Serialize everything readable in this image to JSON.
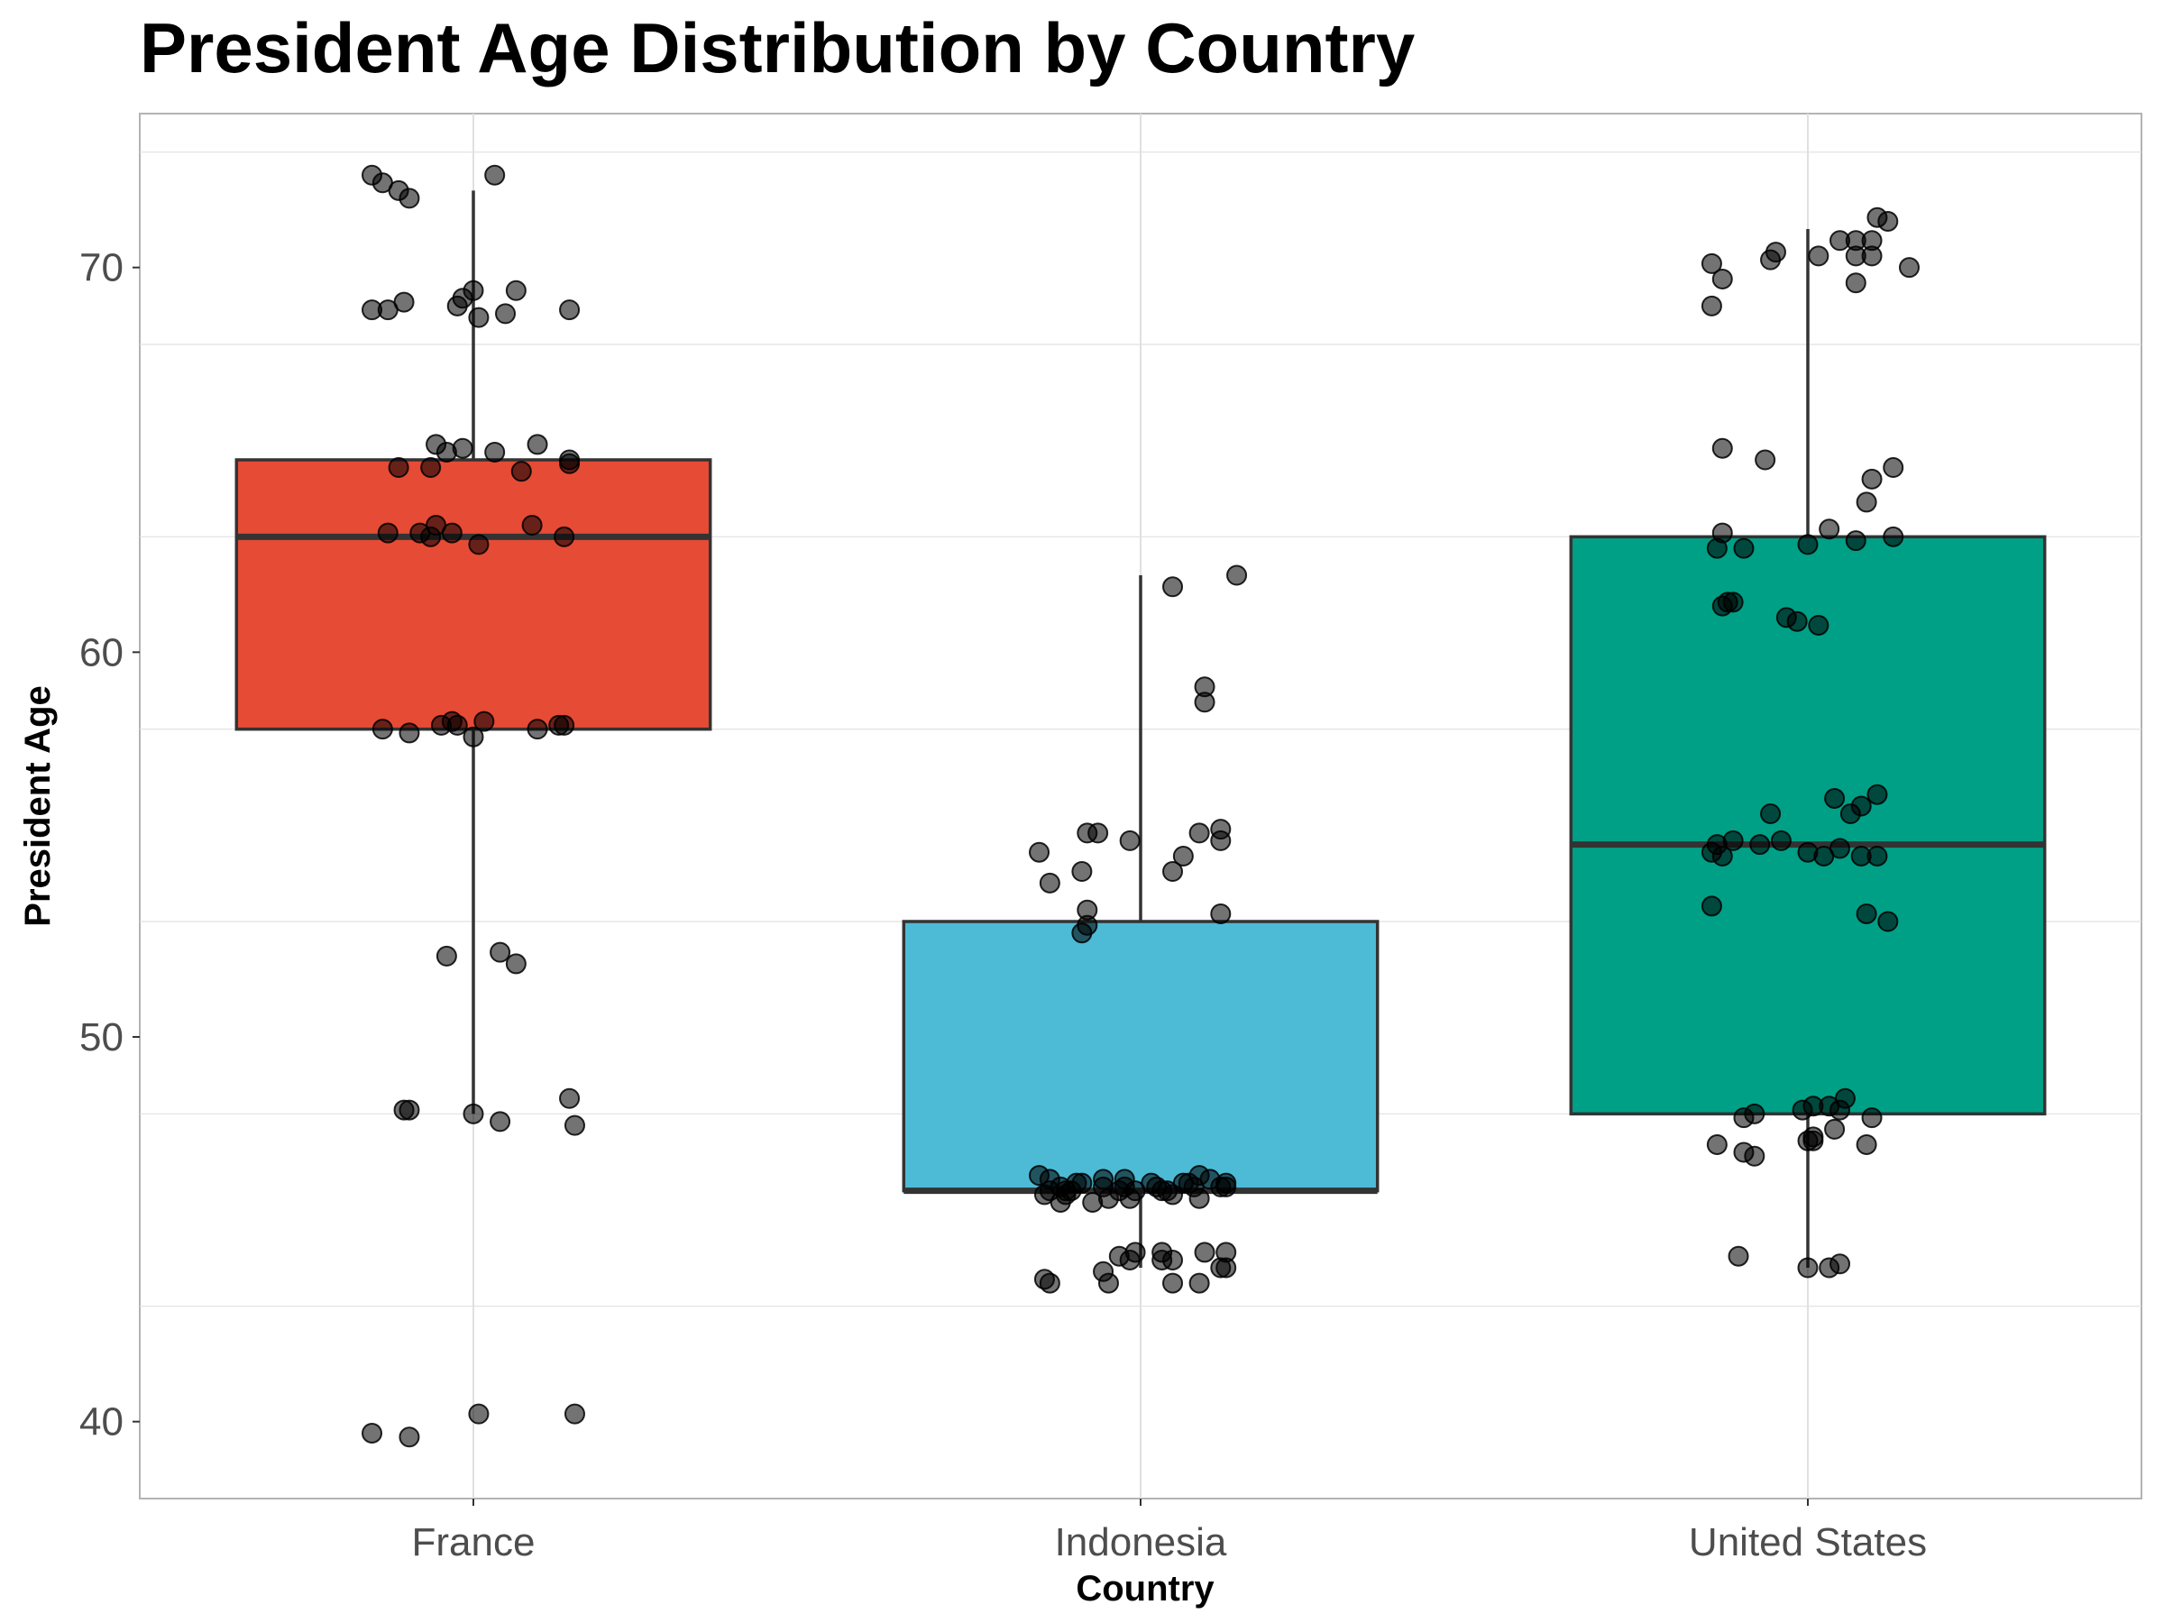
{
  "chart_data": {
    "type": "box",
    "title": "President Age Distribution by Country",
    "xlabel": "Country",
    "ylabel": "President Age",
    "ylim": [
      38,
      74
    ],
    "yticks": [
      40,
      50,
      60,
      70
    ],
    "grid": true,
    "categories": [
      "France",
      "Indonesia",
      "United States"
    ],
    "colors": [
      "#e64b35",
      "#4dbbd5",
      "#00a087"
    ],
    "boxes": [
      {
        "category": "France",
        "q1": 58,
        "median": 63,
        "q3": 65,
        "whisker_low": 48,
        "whisker_high": 72
      },
      {
        "category": "Indonesia",
        "q1": 46,
        "median": 46,
        "q3": 53,
        "whisker_low": 44,
        "whisker_high": 62
      },
      {
        "category": "United States",
        "q1": 48,
        "median": 55,
        "q3": 63,
        "whisker_low": 44,
        "whisker_high": 71
      }
    ],
    "points": [
      {
        "category": "France",
        "x": [
          -0.19,
          -0.17,
          -0.14,
          -0.12,
          0.04,
          -0.19,
          -0.16,
          -0.13,
          -0.02,
          0.0,
          0.08,
          0.18,
          -0.03,
          0.01,
          0.06,
          -0.07,
          -0.05,
          -0.02,
          0.04,
          0.12,
          0.18,
          -0.14,
          -0.08,
          0.09,
          0.18,
          -0.16,
          -0.08,
          -0.07,
          -0.1,
          -0.04,
          0.01,
          0.11,
          0.17,
          -0.06,
          0.02,
          0.16,
          -0.17,
          -0.12,
          -0.04,
          -0.03,
          0.0,
          0.12,
          0.17,
          -0.05,
          0.05,
          0.08,
          -0.12,
          -0.13,
          0.0,
          0.05,
          0.18,
          0.19,
          -0.19,
          -0.12,
          0.01,
          0.19
        ],
        "y": [
          72.4,
          72.2,
          72.0,
          71.8,
          72.4,
          68.9,
          68.9,
          69.1,
          69.2,
          69.4,
          69.4,
          68.9,
          69.0,
          68.7,
          68.8,
          65.4,
          65.2,
          65.3,
          65.2,
          65.4,
          65.0,
          64.8,
          64.8,
          64.7,
          64.9,
          63.1,
          63.0,
          63.3,
          63.1,
          63.1,
          62.8,
          63.3,
          63.0,
          58.1,
          58.2,
          58.1,
          58.0,
          57.9,
          58.2,
          58.1,
          57.8,
          58.0,
          58.1,
          52.1,
          52.2,
          51.9,
          48.1,
          48.1,
          48.0,
          47.8,
          48.4,
          47.7,
          39.7,
          39.6,
          40.2,
          40.2
        ]
      },
      {
        "category": "Indonesia",
        "x": [
          0.18,
          0.06,
          0.12,
          0.12,
          -0.19,
          -0.1,
          -0.08,
          0.15,
          0.11,
          -0.17,
          -0.11,
          -0.1,
          -0.02,
          0.06,
          0.08,
          0.15,
          -0.1,
          -0.11,
          0.15,
          -0.19,
          -0.17,
          -0.15,
          -0.13,
          -0.11,
          -0.07,
          -0.03,
          0.04,
          0.08,
          0.11,
          0.16,
          -0.18,
          -0.14,
          -0.12,
          -0.07,
          -0.06,
          -0.01,
          0.03,
          0.05,
          0.09,
          0.13,
          0.15,
          -0.17,
          -0.15,
          -0.14,
          -0.09,
          -0.04,
          -0.03,
          -0.02,
          0.02,
          0.06,
          0.1,
          0.11,
          0.16,
          -0.04,
          -0.02,
          0.04,
          0.12,
          0.15,
          -0.17,
          -0.06,
          0.06,
          0.11,
          0.16,
          -0.18,
          -0.07,
          -0.01,
          0.04,
          0.06,
          0.16
        ],
        "y": [
          62.0,
          61.7,
          59.1,
          58.7,
          54.8,
          55.3,
          55.3,
          55.1,
          55.3,
          54.0,
          54.3,
          53.3,
          55.1,
          54.3,
          54.7,
          55.4,
          52.9,
          52.7,
          53.2,
          46.4,
          46.3,
          46.1,
          46.0,
          46.2,
          46.3,
          46.3,
          46.0,
          46.2,
          46.4,
          46.2,
          45.9,
          45.9,
          46.2,
          46.1,
          45.8,
          46.0,
          46.1,
          46.0,
          46.2,
          46.3,
          46.1,
          46.0,
          45.7,
          46.0,
          45.7,
          46.0,
          46.1,
          45.8,
          46.2,
          45.9,
          46.1,
          45.8,
          46.1,
          44.3,
          44.2,
          44.2,
          44.4,
          44.0,
          43.6,
          43.6,
          43.6,
          43.6,
          44.0,
          43.7,
          43.9,
          44.4,
          44.4,
          44.2,
          44.4
        ]
      },
      {
        "category": "United States",
        "x": [
          -0.18,
          0.09,
          0.12,
          0.19,
          -0.16,
          -0.18,
          -0.07,
          -0.06,
          0.02,
          0.06,
          0.09,
          0.09,
          0.12,
          0.15,
          0.13,
          -0.16,
          -0.08,
          0.16,
          0.12,
          0.11,
          0.16,
          -0.16,
          -0.17,
          0.0,
          -0.12,
          -0.15,
          -0.16,
          -0.14,
          0.09,
          0.04,
          -0.04,
          0.02,
          -0.02,
          0.08,
          0.1,
          0.13,
          -0.07,
          0.05,
          -0.17,
          -0.09,
          -0.16,
          -0.18,
          0.0,
          0.03,
          0.06,
          0.13,
          0.1,
          -0.05,
          -0.14,
          0.11,
          0.15,
          -0.18,
          0.04,
          0.01,
          -0.01,
          0.07,
          0.06,
          -0.12,
          -0.1,
          0.12,
          0.01,
          0.0,
          0.11,
          -0.17,
          0.01,
          0.05,
          -0.1,
          -0.12,
          0.06,
          0.04,
          -0.13,
          0.0
        ],
        "y": [
          70.1,
          70.3,
          70.3,
          70.0,
          69.7,
          69.0,
          70.2,
          70.4,
          70.3,
          70.7,
          70.7,
          69.6,
          70.7,
          71.2,
          71.3,
          65.3,
          65.0,
          64.8,
          64.5,
          63.9,
          63.0,
          63.1,
          62.7,
          62.8,
          62.7,
          61.3,
          61.2,
          61.3,
          62.9,
          63.2,
          60.9,
          60.7,
          60.8,
          55.8,
          56.0,
          56.3,
          55.8,
          56.2,
          55.0,
          55.0,
          54.7,
          54.8,
          54.8,
          54.7,
          54.9,
          54.7,
          54.7,
          55.1,
          55.1,
          53.2,
          53.0,
          53.4,
          48.2,
          48.2,
          48.1,
          48.4,
          48.1,
          47.9,
          48.0,
          47.9,
          47.4,
          47.3,
          47.2,
          47.2,
          47.3,
          47.6,
          46.9,
          47.0,
          44.1,
          44.0,
          44.3,
          44.0
        ]
      }
    ]
  }
}
